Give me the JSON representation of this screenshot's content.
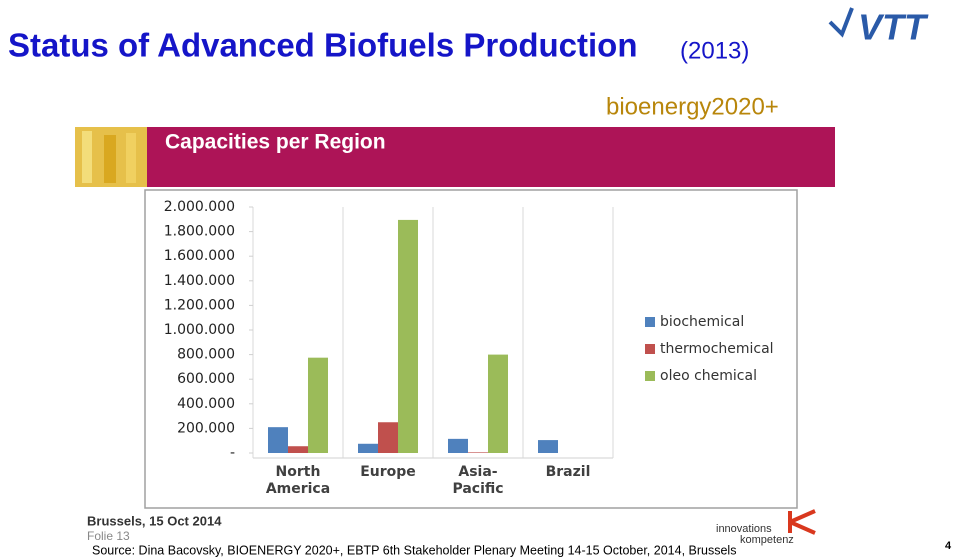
{
  "title": "Status of Advanced Biofuels Production",
  "title_year": "(2013)",
  "logo": "VTT",
  "partner_logo": "bioenergy2020+",
  "banner": "Capacities per Region",
  "chart_data": {
    "type": "bar",
    "categories": [
      "North America",
      "Europe",
      "Asia-Pacific",
      "Brazil"
    ],
    "series": [
      {
        "name": "biochemical",
        "color": "#4f81bd",
        "values": [
          210000,
          75000,
          115000,
          105000
        ]
      },
      {
        "name": "thermochemical",
        "color": "#c0504d",
        "values": [
          55000,
          250000,
          5000,
          0
        ]
      },
      {
        "name": "oleo chemical",
        "color": "#9bbb59",
        "values": [
          775000,
          1895000,
          800000,
          0
        ]
      }
    ],
    "ylim": [
      0,
      2000000
    ],
    "yticks": [
      {
        "value": 0,
        "label": "-"
      },
      {
        "value": 200000,
        "label": "200.000"
      },
      {
        "value": 400000,
        "label": "400.000"
      },
      {
        "value": 600000,
        "label": "600.000"
      },
      {
        "value": 800000,
        "label": "800.000"
      },
      {
        "value": 1000000,
        "label": "1.000.000"
      },
      {
        "value": 1200000,
        "label": "1.200.000"
      },
      {
        "value": 1400000,
        "label": "1.400.000"
      },
      {
        "value": 1600000,
        "label": "1.600.000"
      },
      {
        "value": 1800000,
        "label": "1.800.000"
      },
      {
        "value": 2000000,
        "label": "2.000.000"
      }
    ],
    "grid": false,
    "legend": "right"
  },
  "footer": {
    "place_date": "Brussels, 15 Oct 2014",
    "slide": "Folie 13",
    "logo_line1": "innovations",
    "logo_line2": "kompetenz",
    "source": "Source: Dina Bacovsky, BIOENERGY 2020+, EBTP 6th Stakeholder Plenary Meeting 14-15 October, 2014, Brussels",
    "page": 4
  }
}
